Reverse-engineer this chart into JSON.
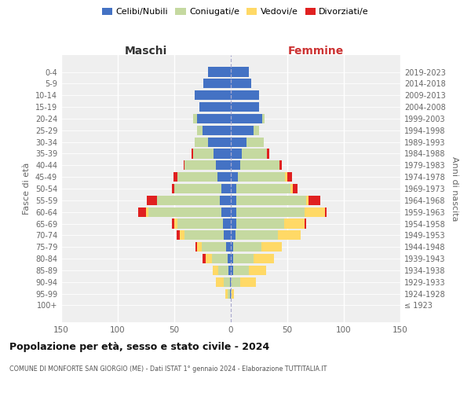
{
  "age_groups": [
    "100+",
    "95-99",
    "90-94",
    "85-89",
    "80-84",
    "75-79",
    "70-74",
    "65-69",
    "60-64",
    "55-59",
    "50-54",
    "45-49",
    "40-44",
    "35-39",
    "30-34",
    "25-29",
    "20-24",
    "15-19",
    "10-14",
    "5-9",
    "0-4"
  ],
  "birth_years": [
    "≤ 1923",
    "1924-1928",
    "1929-1933",
    "1934-1938",
    "1939-1943",
    "1944-1948",
    "1949-1953",
    "1954-1958",
    "1959-1963",
    "1964-1968",
    "1969-1973",
    "1974-1978",
    "1979-1983",
    "1984-1988",
    "1989-1993",
    "1994-1998",
    "1999-2003",
    "2004-2008",
    "2009-2013",
    "2014-2018",
    "2019-2023"
  ],
  "colors": {
    "celibi": "#4472C4",
    "coniugati": "#c5d9a0",
    "vedovi": "#FFD966",
    "divorziati": "#e02020"
  },
  "male_celibi": [
    0,
    1,
    1,
    2,
    3,
    4,
    6,
    7,
    8,
    10,
    8,
    12,
    13,
    15,
    20,
    25,
    30,
    28,
    32,
    24,
    20
  ],
  "male_coniugati": [
    0,
    2,
    5,
    9,
    14,
    22,
    35,
    40,
    65,
    55,
    42,
    35,
    28,
    18,
    12,
    5,
    3,
    0,
    0,
    0,
    0
  ],
  "male_vedovi": [
    0,
    2,
    7,
    5,
    5,
    4,
    4,
    3,
    2,
    0,
    0,
    0,
    0,
    0,
    0,
    0,
    0,
    0,
    0,
    0,
    0
  ],
  "male_divorziati": [
    0,
    0,
    0,
    0,
    3,
    1,
    3,
    2,
    7,
    9,
    2,
    4,
    1,
    2,
    0,
    0,
    0,
    0,
    0,
    0,
    0
  ],
  "female_celibi": [
    0,
    0,
    0,
    2,
    2,
    2,
    4,
    5,
    5,
    5,
    5,
    6,
    8,
    10,
    14,
    20,
    28,
    25,
    25,
    18,
    16
  ],
  "female_coniugati": [
    0,
    1,
    8,
    14,
    18,
    25,
    38,
    42,
    60,
    62,
    48,
    42,
    35,
    22,
    15,
    5,
    2,
    0,
    0,
    0,
    0
  ],
  "female_vedovi": [
    0,
    2,
    14,
    15,
    18,
    18,
    20,
    18,
    18,
    2,
    2,
    2,
    0,
    0,
    0,
    0,
    0,
    0,
    0,
    0,
    0
  ],
  "female_divorziati": [
    0,
    0,
    0,
    0,
    0,
    0,
    0,
    2,
    2,
    10,
    4,
    4,
    2,
    2,
    0,
    0,
    0,
    0,
    0,
    0,
    0
  ],
  "legend_labels": [
    "Celibi/Nubili",
    "Coniugati/e",
    "Vedovi/e",
    "Divorziati/e"
  ],
  "title": "Popolazione per età, sesso e stato civile - 2024",
  "subtitle": "COMUNE DI MONFORTE SAN GIORGIO (ME) - Dati ISTAT 1° gennaio 2024 - Elaborazione TUTTITALIA.IT",
  "label_maschi": "Maschi",
  "label_femmine": "Femmine",
  "label_fasce": "Fasce di età",
  "label_anni": "Anni di nascita",
  "xlim": 150,
  "bg_axes": "#efefef",
  "bg_fig": "#ffffff"
}
